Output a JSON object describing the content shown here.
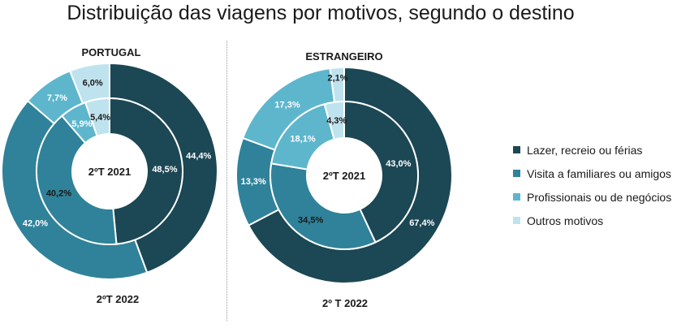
{
  "title": "Distribuição das viagens por motivos, segundo o destino",
  "legend": [
    {
      "label": "Lazer, recreio ou férias",
      "color": "#1c4754"
    },
    {
      "label": "Visita a familiares ou amigos",
      "color": "#2f8299"
    },
    {
      "label": "Profissionais ou de negócios",
      "color": "#5eb6cd"
    },
    {
      "label": "Outros motivos",
      "color": "#bfe3ee"
    }
  ],
  "chart_data": [
    {
      "type": "pie",
      "title": "PORTUGAL",
      "outer_ring_label": "2ºT 2022",
      "inner_ring_label": "2ºT 2021",
      "categories": [
        "Lazer, recreio ou férias",
        "Visita a familiares ou amigos",
        "Profissionais ou de negócios",
        "Outros motivos"
      ],
      "series": [
        {
          "name": "2ºT 2022",
          "values": [
            44.4,
            42.0,
            7.7,
            6.0
          ],
          "labels": [
            "44,4%",
            "42,0%",
            "7,7%",
            "6,0%"
          ]
        },
        {
          "name": "2ºT 2021",
          "values": [
            48.5,
            40.2,
            5.9,
            5.4
          ],
          "labels": [
            "48,5%",
            "40,2%",
            "5,9%",
            "5,4%"
          ]
        }
      ]
    },
    {
      "type": "pie",
      "title": "ESTRANGEIRO",
      "outer_ring_label": "2º T 2022",
      "inner_ring_label": "2ºT 2021",
      "categories": [
        "Lazer, recreio ou férias",
        "Visita a familiares ou amigos",
        "Profissionais ou de negócios",
        "Outros motivos"
      ],
      "series": [
        {
          "name": "2º T 2022",
          "values": [
            67.4,
            13.3,
            17.3,
            2.1
          ],
          "labels": [
            "67,4%",
            "13,3%",
            "17,3%",
            "2,1%"
          ]
        },
        {
          "name": "2ºT 2021",
          "values": [
            43.0,
            34.5,
            18.1,
            4.3
          ],
          "labels": [
            "43,0%",
            "34,5%",
            "18,1%",
            "4,3%"
          ]
        }
      ]
    }
  ]
}
